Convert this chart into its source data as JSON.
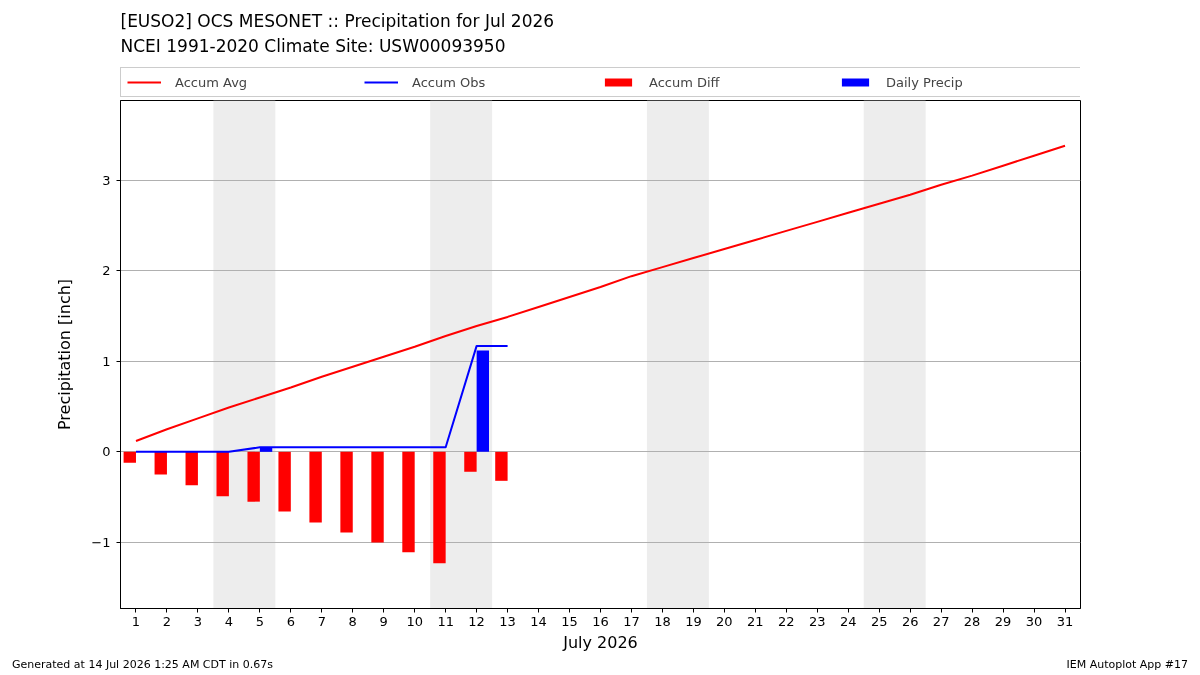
{
  "chart_data": {
    "type": "line",
    "title": "[EUSO2] OCS MESONET :: Precipitation for Jul 2026",
    "subtitle": "NCEI 1991-2020 Climate Site: USW00093950",
    "xlabel": "July 2026",
    "ylabel": "Precipitation [inch]",
    "annotations": [
      "Generated at 14 Jul 2026 1:25 AM CDT in 0.67s",
      "IEM Autoplot App #17"
    ],
    "x": [
      1,
      2,
      3,
      4,
      5,
      6,
      7,
      8,
      9,
      10,
      11,
      12,
      13,
      14,
      15,
      16,
      17,
      18,
      19,
      20,
      21,
      22,
      23,
      24,
      25,
      26,
      27,
      28,
      29,
      30,
      31
    ],
    "series": [
      {
        "name": "Accum Avg",
        "color": "#ff0000",
        "values": [
          0.12,
          0.25,
          0.37,
          0.49,
          0.6,
          0.71,
          0.83,
          0.94,
          1.05,
          1.16,
          1.28,
          1.39,
          1.49,
          1.6,
          1.71,
          1.82,
          1.94,
          2.04,
          2.14,
          2.24,
          2.34,
          2.44,
          2.54,
          2.64,
          2.74,
          2.84,
          2.95,
          3.05,
          3.16,
          3.27,
          3.38
        ]
      },
      {
        "name": "Accum Obs",
        "color": "#0000ff",
        "x": [
          1,
          2,
          3,
          4,
          5,
          6,
          7,
          8,
          9,
          10,
          11,
          12,
          13
        ],
        "values": [
          0,
          0,
          0,
          0,
          0.05,
          0.05,
          0.05,
          0.05,
          0.05,
          0.05,
          0.05,
          1.17,
          1.17
        ]
      },
      {
        "name": "Accum Diff",
        "type": "bar",
        "color": "#ff0000",
        "x": [
          1,
          2,
          3,
          4,
          5,
          6,
          7,
          8,
          9,
          10,
          11,
          12,
          13
        ],
        "values": [
          -0.12,
          -0.25,
          -0.37,
          -0.49,
          -0.55,
          -0.66,
          -0.78,
          -0.89,
          -1.0,
          -1.11,
          -1.23,
          -0.22,
          -0.32
        ]
      },
      {
        "name": "Daily Precip",
        "type": "bar",
        "color": "#0000ff",
        "x": [
          1,
          2,
          3,
          4,
          5,
          6,
          7,
          8,
          9,
          10,
          11,
          12,
          13
        ],
        "values": [
          0,
          0,
          0,
          0,
          0.05,
          0,
          0,
          0,
          0,
          0,
          0,
          1.12,
          0
        ]
      }
    ],
    "xlim": [
      0.5,
      31.5
    ],
    "ylim": [
      -1.73,
      3.88
    ],
    "xticks": [
      1,
      2,
      3,
      4,
      5,
      6,
      7,
      8,
      9,
      10,
      11,
      12,
      13,
      14,
      15,
      16,
      17,
      18,
      19,
      20,
      21,
      22,
      23,
      24,
      25,
      26,
      27,
      28,
      29,
      30,
      31
    ],
    "yticks": [
      {
        "value": -1,
        "label": "−1"
      },
      0,
      1,
      2,
      3
    ],
    "bands": [
      {
        "axis": "x",
        "from": 3.5,
        "to": 5.5,
        "color": "#ededed"
      },
      {
        "axis": "x",
        "from": 10.5,
        "to": 12.5,
        "color": "#ededed"
      },
      {
        "axis": "x",
        "from": 17.5,
        "to": 19.5,
        "color": "#ededed"
      },
      {
        "axis": "x",
        "from": 24.5,
        "to": 26.5,
        "color": "#ededed"
      }
    ],
    "grid": "y",
    "legend": "top"
  }
}
